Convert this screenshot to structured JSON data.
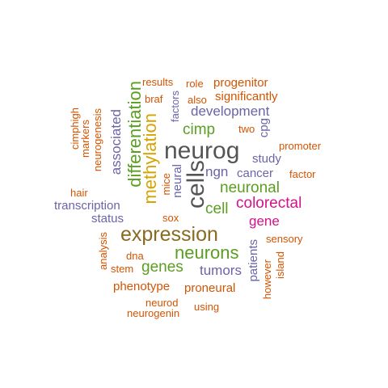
{
  "colors": {
    "orange": "#d35400",
    "purple": "#6a64a8",
    "green": "#5a9e22",
    "gold": "#d6a300",
    "brown": "#8a6a20",
    "gray": "#555555",
    "magenta": "#d4118a"
  },
  "words": {
    "results": "results",
    "role": "role",
    "progenitor": "progenitor",
    "braf": "braf",
    "also": "also",
    "significantly": "significantly",
    "factors": "factors",
    "development": "development",
    "differentiation": "differentiation",
    "cimphigh": "cimphigh",
    "markers": "markers",
    "neurogenesis": "neurogenesis",
    "associated": "associated",
    "methylation": "methylation",
    "cimp": "cimp",
    "two": "two",
    "cpg": "cpg",
    "neurog": "neurog",
    "promoter": "promoter",
    "study": "study",
    "mice": "mice",
    "neural": "neural",
    "cells": "cells",
    "ngn": "ngn",
    "cancer": "cancer",
    "factor": "factor",
    "hair": "hair",
    "neuronal": "neuronal",
    "transcription": "transcription",
    "colorectal": "colorectal",
    "status": "status",
    "cell": "cell",
    "sox": "sox",
    "gene": "gene",
    "expression": "expression",
    "analysis": "analysis",
    "sensory": "sensory",
    "dna": "dna",
    "neurons": "neurons",
    "patients": "patients",
    "island": "island",
    "stem": "stem",
    "genes": "genes",
    "tumors": "tumors",
    "however": "however",
    "phenotype": "phenotype",
    "proneural": "proneural",
    "neurod": "neurod",
    "using": "using",
    "neurogenin": "neurogenin"
  }
}
